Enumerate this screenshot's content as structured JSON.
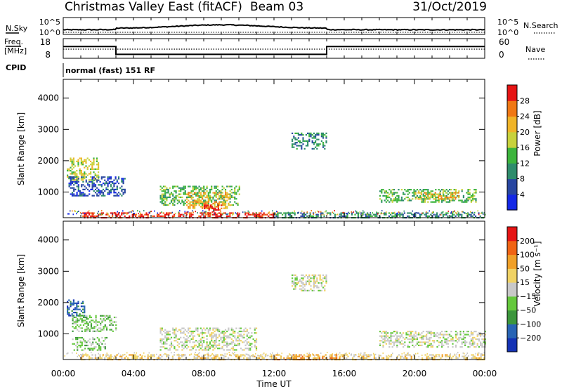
{
  "header": {
    "station": "Christmas Valley East (fitACF)",
    "beam": "Beam 03",
    "date": "31/Oct/2019"
  },
  "strip1": {
    "left_label": "N.Sky",
    "left_ticks": [
      "10^5",
      "10^0"
    ],
    "right_label": "N.Search",
    "right_ticks": [
      "10^5",
      "10^0"
    ]
  },
  "strip2": {
    "left_label_1": "Freq.",
    "left_label_2": "[MHz]",
    "left_ticks": [
      "18",
      "8"
    ],
    "right_label": "Nave",
    "right_ticks": [
      "60",
      "0"
    ],
    "cpid_label": "CPID",
    "mode": "normal (fast) 151 RF"
  },
  "xaxis": {
    "label": "Time UT",
    "ticks": [
      "00:00",
      "04:00",
      "08:00",
      "12:00",
      "16:00",
      "20:00",
      "00:00"
    ]
  },
  "panels": {
    "power": {
      "ylabel": "Slant Range [km]",
      "yticks": [
        "1000",
        "2000",
        "3000",
        "4000"
      ],
      "colorbar_label": "Power [dB]",
      "colorbar_ticks": [
        "4",
        "8",
        "12",
        "16",
        "20",
        "24",
        "28"
      ],
      "colors": [
        "#1428e6",
        "#2846a0",
        "#2e8c6c",
        "#3cb43c",
        "#c8d23c",
        "#f0b428",
        "#f07814",
        "#e61414"
      ]
    },
    "velocity": {
      "ylabel": "Slant Range [km]",
      "yticks": [
        "1000",
        "2000",
        "3000",
        "4000"
      ],
      "colorbar_label": "Velocity [m s⁻¹]",
      "colorbar_ticks": [
        "200",
        "100",
        "50",
        "15",
        "−15",
        "−50",
        "−100",
        "−200"
      ],
      "colors": [
        "#1432b4",
        "#2864b4",
        "#3c963c",
        "#64c83c",
        "#c8c8c8",
        "#f0d264",
        "#f0a028",
        "#f06414",
        "#e61414"
      ]
    }
  },
  "chart_data": {
    "type": "heatmap",
    "x_unit": "hours UT",
    "y_unit": "km",
    "xlim": [
      0,
      24
    ],
    "ylim": [
      180,
      4600
    ],
    "frequency": {
      "x": [
        0,
        3,
        3,
        15,
        15,
        24
      ],
      "y": [
        14,
        14,
        10,
        10,
        14,
        14
      ]
    },
    "power": {
      "regions": [
        {
          "x0": 0.2,
          "x1": 2.0,
          "y0": 1400,
          "y1": 2100,
          "level": 4
        },
        {
          "x0": 0.3,
          "x1": 3.5,
          "y0": 900,
          "y1": 1500,
          "level": 1
        },
        {
          "x0": 5.5,
          "x1": 10.0,
          "y0": 600,
          "y1": 1200,
          "level": 3
        },
        {
          "x0": 7.0,
          "x1": 9.5,
          "y0": 500,
          "y1": 1000,
          "level": 5
        },
        {
          "x0": 8.0,
          "x1": 9.0,
          "y0": 300,
          "y1": 600,
          "level": 7
        },
        {
          "x0": 1.0,
          "x1": 12.0,
          "y0": 200,
          "y1": 350,
          "level": 7
        },
        {
          "x0": 12.0,
          "x1": 24.0,
          "y0": 200,
          "y1": 350,
          "level": 2
        },
        {
          "x0": 13.0,
          "x1": 15.0,
          "y0": 2400,
          "y1": 2900,
          "level": 2
        },
        {
          "x0": 18.0,
          "x1": 23.5,
          "y0": 700,
          "y1": 1100,
          "level": 3
        },
        {
          "x0": 20.0,
          "x1": 22.5,
          "y0": 800,
          "y1": 1000,
          "level": 5
        }
      ]
    },
    "velocity": {
      "regions": [
        {
          "x0": 0.2,
          "x1": 1.2,
          "y0": 1600,
          "y1": 2100,
          "level": 1
        },
        {
          "x0": 0.5,
          "x1": 3.0,
          "y0": 1100,
          "y1": 1600,
          "level": 3
        },
        {
          "x0": 0.5,
          "x1": 2.5,
          "y0": 500,
          "y1": 900,
          "level": 3
        },
        {
          "x0": 5.5,
          "x1": 11.0,
          "y0": 500,
          "y1": 1200,
          "level": 4
        },
        {
          "x0": 1.0,
          "x1": 12.0,
          "y0": 200,
          "y1": 350,
          "level": 5
        },
        {
          "x0": 12.0,
          "x1": 16.0,
          "y0": 200,
          "y1": 350,
          "level": 6
        },
        {
          "x0": 16.0,
          "x1": 24.0,
          "y0": 200,
          "y1": 350,
          "level": 5
        },
        {
          "x0": 13.0,
          "x1": 15.0,
          "y0": 2400,
          "y1": 2900,
          "level": 4
        },
        {
          "x0": 18.0,
          "x1": 24.0,
          "y0": 600,
          "y1": 1100,
          "level": 4
        }
      ]
    }
  }
}
